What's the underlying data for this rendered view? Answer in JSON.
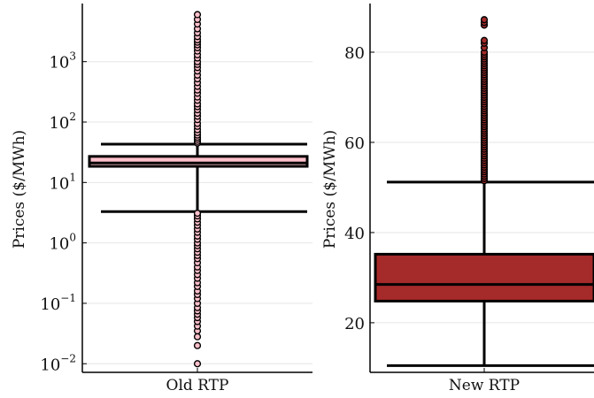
{
  "chart_data": [
    {
      "type": "box",
      "ylabel": "Prices ($/MWh)",
      "yscale": "log",
      "ylim": [
        0.0072,
        8000
      ],
      "yticks": [
        {
          "value": 0.01,
          "label": "10",
          "exp": "−2"
        },
        {
          "value": 0.1,
          "label": "10",
          "exp": "−1"
        },
        {
          "value": 1,
          "label": "10",
          "exp": "0"
        },
        {
          "value": 10,
          "label": "10",
          "exp": "1"
        },
        {
          "value": 100,
          "label": "10",
          "exp": "2"
        },
        {
          "value": 1000,
          "label": "10",
          "exp": "3"
        }
      ],
      "grid": true,
      "categories": [
        "Old RTP"
      ],
      "colors": {
        "box": "#ffc0cb",
        "outlier": "#ffc0cb",
        "line": "#000000"
      },
      "box": {
        "whisker_low": 3.3,
        "q1": 18.5,
        "median": 21,
        "q3": 27,
        "whisker_high": 43
      },
      "outliers": [
        0.01,
        0.02,
        0.028,
        0.035,
        0.042,
        0.05,
        0.058,
        0.066,
        0.075,
        0.085,
        0.1,
        0.12,
        0.14,
        0.16,
        0.19,
        0.22,
        0.26,
        0.3,
        0.35,
        0.4,
        0.47,
        0.55,
        0.62,
        0.7,
        0.8,
        0.9,
        1.0,
        1.15,
        1.3,
        1.5,
        1.7,
        1.95,
        2.2,
        2.5,
        2.8,
        3.1,
        45,
        48,
        52,
        56,
        61,
        67,
        75,
        85,
        95,
        110,
        125,
        140,
        160,
        180,
        200,
        230,
        260,
        300,
        340,
        390,
        450,
        520,
        600,
        700,
        800,
        900,
        1000,
        1150,
        1300,
        1500,
        1700,
        1900,
        2100,
        2300,
        2600,
        3000,
        3500,
        4200,
        5000,
        6000
      ]
    },
    {
      "type": "box",
      "ylabel": "Prices ($/MWh)",
      "yscale": "linear",
      "ylim": [
        9,
        90
      ],
      "yticks": [
        {
          "value": 20,
          "label": "20"
        },
        {
          "value": 40,
          "label": "40"
        },
        {
          "value": 60,
          "label": "60"
        },
        {
          "value": 80,
          "label": "80"
        }
      ],
      "grid": true,
      "categories": [
        "New RTP"
      ],
      "colors": {
        "box": "#a52a2a",
        "outlier": "#a52a2a",
        "line": "#000000"
      },
      "box": {
        "whisker_low": 10.5,
        "q1": 24.8,
        "median": 28.5,
        "q3": 35.2,
        "whisker_high": 51.2
      },
      "outliers": [
        51.5,
        52,
        52.5,
        53,
        53.5,
        54,
        54.5,
        55,
        55.5,
        56,
        56.5,
        57,
        57.5,
        58,
        58.5,
        59,
        59.5,
        60,
        60.5,
        61,
        61.5,
        62,
        62.5,
        63,
        63.5,
        64,
        64.5,
        65,
        65.5,
        66,
        66.5,
        67,
        67.5,
        68,
        68.5,
        69,
        69.5,
        70,
        70.5,
        71,
        71.5,
        72,
        72.5,
        73,
        73.5,
        74,
        74.5,
        75,
        75.5,
        76,
        76.5,
        77,
        77.5,
        78,
        78.5,
        79,
        79.5,
        80,
        81,
        82,
        82.6,
        86,
        86.6,
        87.2
      ]
    }
  ]
}
